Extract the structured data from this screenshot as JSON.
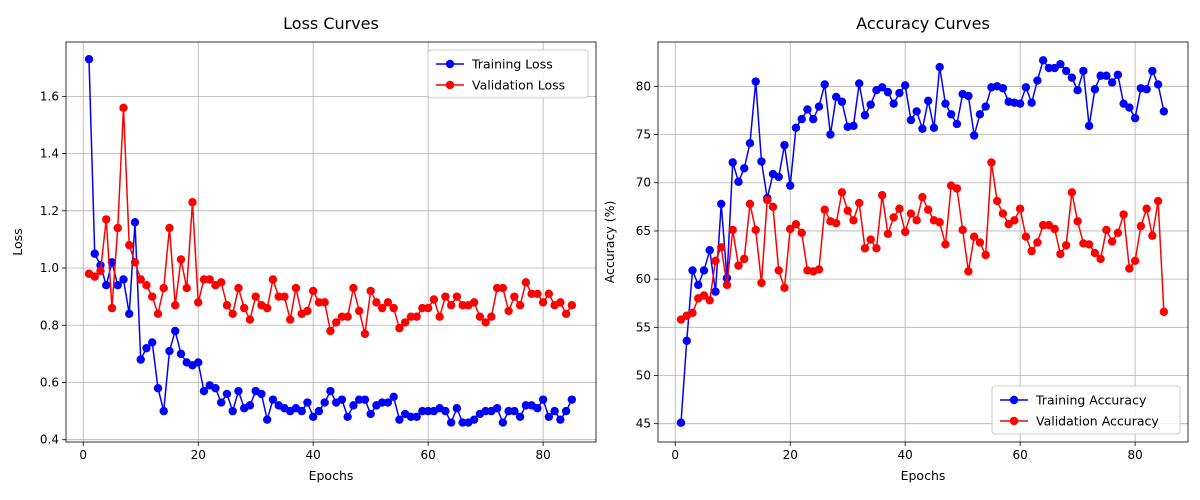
{
  "chart_data": [
    {
      "type": "line",
      "title": "Loss Curves",
      "xlabel": "Epochs",
      "ylabel": "Loss",
      "xlim": [
        -3,
        89.2
      ],
      "ylim": [
        0.392,
        1.79
      ],
      "xticks": [
        0,
        20,
        40,
        60,
        80
      ],
      "yticks": [
        0.4,
        0.6,
        0.8,
        1.0,
        1.2,
        1.4,
        1.6
      ],
      "ytick_labels": [
        "0.4",
        "0.6",
        "0.8",
        "1.0",
        "1.2",
        "1.4",
        "1.6"
      ],
      "grid": true,
      "legend_position": "top-right",
      "x": [
        1,
        2,
        3,
        4,
        5,
        6,
        7,
        8,
        9,
        10,
        11,
        12,
        13,
        14,
        15,
        16,
        17,
        18,
        19,
        20,
        21,
        22,
        23,
        24,
        25,
        26,
        27,
        28,
        29,
        30,
        31,
        32,
        33,
        34,
        35,
        36,
        37,
        38,
        39,
        40,
        41,
        42,
        43,
        44,
        45,
        46,
        47,
        48,
        49,
        50,
        51,
        52,
        53,
        54,
        55,
        56,
        57,
        58,
        59,
        60,
        61,
        62,
        63,
        64,
        65,
        66,
        67,
        68,
        69,
        70,
        71,
        72,
        73,
        74,
        75,
        76,
        77,
        78,
        79,
        80,
        81,
        82,
        83,
        84,
        85
      ],
      "series": [
        {
          "name": "Training Loss",
          "color": "#0000ff",
          "values": [
            1.73,
            1.05,
            1.01,
            0.94,
            1.02,
            0.94,
            0.96,
            0.84,
            1.16,
            0.68,
            0.72,
            0.74,
            0.58,
            0.5,
            0.71,
            0.78,
            0.7,
            0.67,
            0.66,
            0.67,
            0.57,
            0.59,
            0.58,
            0.53,
            0.56,
            0.5,
            0.57,
            0.51,
            0.52,
            0.57,
            0.56,
            0.47,
            0.54,
            0.52,
            0.51,
            0.5,
            0.51,
            0.5,
            0.53,
            0.48,
            0.5,
            0.53,
            0.57,
            0.53,
            0.54,
            0.48,
            0.52,
            0.54,
            0.54,
            0.49,
            0.52,
            0.53,
            0.53,
            0.55,
            0.47,
            0.49,
            0.48,
            0.48,
            0.5,
            0.5,
            0.5,
            0.51,
            0.5,
            0.46,
            0.51,
            0.46,
            0.46,
            0.47,
            0.49,
            0.5,
            0.5,
            0.51,
            0.46,
            0.5,
            0.5,
            0.48,
            0.52,
            0.52,
            0.51,
            0.54,
            0.48,
            0.5,
            0.47,
            0.5,
            0.54
          ]
        },
        {
          "name": "Validation Loss",
          "color": "#ff0000",
          "values": [
            0.98,
            0.97,
            0.99,
            1.17,
            0.86,
            1.14,
            1.56,
            1.08,
            1.02,
            0.96,
            0.94,
            0.9,
            0.84,
            0.93,
            1.14,
            0.87,
            1.03,
            0.93,
            1.23,
            0.88,
            0.96,
            0.96,
            0.94,
            0.95,
            0.87,
            0.84,
            0.93,
            0.86,
            0.82,
            0.9,
            0.87,
            0.86,
            0.96,
            0.9,
            0.9,
            0.82,
            0.93,
            0.84,
            0.85,
            0.92,
            0.88,
            0.88,
            0.78,
            0.81,
            0.83,
            0.83,
            0.93,
            0.85,
            0.77,
            0.92,
            0.88,
            0.86,
            0.88,
            0.86,
            0.79,
            0.81,
            0.83,
            0.83,
            0.86,
            0.86,
            0.89,
            0.83,
            0.9,
            0.87,
            0.9,
            0.87,
            0.87,
            0.88,
            0.83,
            0.81,
            0.83,
            0.93,
            0.93,
            0.85,
            0.9,
            0.87,
            0.95,
            0.91,
            0.91,
            0.88,
            0.91,
            0.87,
            0.88,
            0.84,
            0.87
          ]
        }
      ]
    },
    {
      "type": "line",
      "title": "Accuracy Curves",
      "xlabel": "Epochs",
      "ylabel": "Accuracy (%)",
      "xlim": [
        -3,
        89.2
      ],
      "ylim": [
        43.1,
        84.6
      ],
      "xticks": [
        0,
        20,
        40,
        60,
        80
      ],
      "yticks": [
        45,
        50,
        55,
        60,
        65,
        70,
        75,
        80
      ],
      "ytick_labels": [
        "45",
        "50",
        "55",
        "60",
        "65",
        "70",
        "75",
        "80"
      ],
      "grid": true,
      "legend_position": "bottom-right",
      "x": [
        1,
        2,
        3,
        4,
        5,
        6,
        7,
        8,
        9,
        10,
        11,
        12,
        13,
        14,
        15,
        16,
        17,
        18,
        19,
        20,
        21,
        22,
        23,
        24,
        25,
        26,
        27,
        28,
        29,
        30,
        31,
        32,
        33,
        34,
        35,
        36,
        37,
        38,
        39,
        40,
        41,
        42,
        43,
        44,
        45,
        46,
        47,
        48,
        49,
        50,
        51,
        52,
        53,
        54,
        55,
        56,
        57,
        58,
        59,
        60,
        61,
        62,
        63,
        64,
        65,
        66,
        67,
        68,
        69,
        70,
        71,
        72,
        73,
        74,
        75,
        76,
        77,
        78,
        79,
        80,
        81,
        82,
        83,
        84,
        85
      ],
      "series": [
        {
          "name": "Training Accuracy",
          "color": "#0000ff",
          "values": [
            45.1,
            53.6,
            60.9,
            59.4,
            60.9,
            63.0,
            58.7,
            67.8,
            60.1,
            72.1,
            70.1,
            71.5,
            74.1,
            80.5,
            72.2,
            68.4,
            70.9,
            70.6,
            73.9,
            69.7,
            75.7,
            76.6,
            77.6,
            76.6,
            77.9,
            80.2,
            75.0,
            78.9,
            78.4,
            75.8,
            75.9,
            80.3,
            77.0,
            78.1,
            79.6,
            79.9,
            79.4,
            78.2,
            79.3,
            80.1,
            76.5,
            77.4,
            75.6,
            78.5,
            75.7,
            82.0,
            78.2,
            77.1,
            76.1,
            79.2,
            79.0,
            74.9,
            77.1,
            77.9,
            79.9,
            80.0,
            79.8,
            78.4,
            78.3,
            78.2,
            79.9,
            78.3,
            80.6,
            82.7,
            81.9,
            81.9,
            82.3,
            81.6,
            80.9,
            79.6,
            81.6,
            75.9,
            79.7,
            81.1,
            81.1,
            80.4,
            81.2,
            78.2,
            77.8,
            76.7,
            79.8,
            79.7,
            81.6,
            80.2,
            77.4
          ]
        },
        {
          "name": "Validation Accuracy",
          "color": "#ff0000",
          "values": [
            55.8,
            56.2,
            56.5,
            58.0,
            58.3,
            57.8,
            61.9,
            63.3,
            59.4,
            65.1,
            61.4,
            62.1,
            67.8,
            65.1,
            59.6,
            68.2,
            67.5,
            60.9,
            59.1,
            65.2,
            65.7,
            64.8,
            60.9,
            60.8,
            61.0,
            67.2,
            66.0,
            65.8,
            69.0,
            67.1,
            66.1,
            67.9,
            63.2,
            64.1,
            63.2,
            68.7,
            64.7,
            66.4,
            67.3,
            64.9,
            66.8,
            66.1,
            68.5,
            67.2,
            66.1,
            65.9,
            63.6,
            69.7,
            69.4,
            65.1,
            60.8,
            64.4,
            63.8,
            62.5,
            72.1,
            68.1,
            66.8,
            65.7,
            66.1,
            67.3,
            64.4,
            62.9,
            63.8,
            65.6,
            65.6,
            65.2,
            62.6,
            63.5,
            69.0,
            66.0,
            63.7,
            63.6,
            62.7,
            62.1,
            65.1,
            63.9,
            64.8,
            66.7,
            61.1,
            61.9,
            65.5,
            67.3,
            64.5,
            68.1,
            56.6
          ]
        }
      ]
    }
  ]
}
